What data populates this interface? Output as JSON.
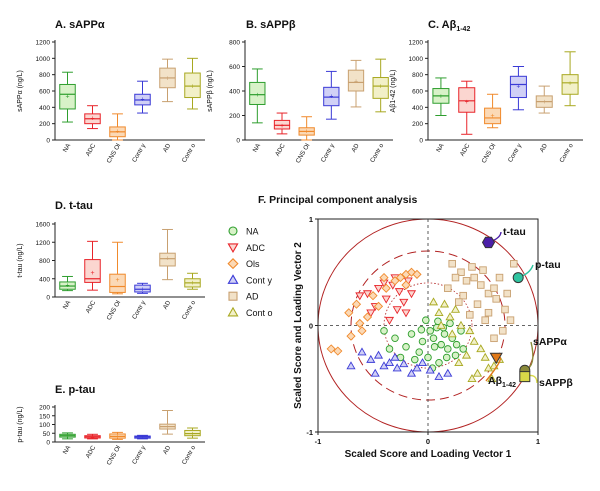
{
  "colors": {
    "NA": "#2e9e2e",
    "ADC": "#e8242a",
    "Ols": "#f08a2c",
    "Conty": "#3a3ad6",
    "AD": "#c8a070",
    "Conto": "#a8a820",
    "NA_fill": "#d8f2c8",
    "ADC_fill": "#fbd6d0",
    "Ols_fill": "#fbd9b6",
    "Conty_fill": "#d0d0f6",
    "AD_fill": "#f2e2c8",
    "Conto_fill": "#f2f0c8",
    "circle": "#b22222"
  },
  "chart_data": [
    {
      "id": "A",
      "type": "box",
      "title_prefix": "A. ",
      "title_main": "sAPP",
      "title_suffix": "α",
      "ylabel": "sAPPα (ng/L)",
      "ylim": [
        0,
        1200
      ],
      "yticks": [
        0,
        200,
        400,
        600,
        800,
        1000,
        1200
      ],
      "categories": [
        "NA",
        "ADC",
        "CNS Ol",
        "Contr y",
        "AD",
        "Contr o"
      ],
      "series": [
        {
          "group": "NA",
          "whisker_low": 220,
          "q1": 380,
          "median": 560,
          "q3": 680,
          "whisker_high": 830,
          "mean": 540
        },
        {
          "group": "ADC",
          "whisker_low": 140,
          "q1": 200,
          "median": 260,
          "q3": 320,
          "whisker_high": 420,
          "mean": 270
        },
        {
          "group": "Ols",
          "whisker_low": 0,
          "q1": 40,
          "median": 100,
          "q3": 160,
          "whisker_high": 320,
          "mean": 110
        },
        {
          "group": "Conty",
          "whisker_low": 330,
          "q1": 430,
          "median": 490,
          "q3": 560,
          "whisker_high": 720,
          "mean": 500
        },
        {
          "group": "AD",
          "whisker_low": 470,
          "q1": 640,
          "median": 760,
          "q3": 880,
          "whisker_high": 990,
          "mean": 760
        },
        {
          "group": "Conto",
          "whisker_low": 380,
          "q1": 520,
          "median": 660,
          "q3": 820,
          "whisker_high": 1000,
          "mean": 660
        }
      ]
    },
    {
      "id": "B",
      "type": "box",
      "title_prefix": "B. ",
      "title_main": "sAPP",
      "title_suffix": "β",
      "ylabel": "sAPPβ (ng/L)",
      "ylim": [
        0,
        800
      ],
      "yticks": [
        0,
        200,
        400,
        600,
        800
      ],
      "categories": [
        "NA",
        "ADC",
        "CNS Ol",
        "Contr y",
        "AD",
        "Contr o"
      ],
      "series": [
        {
          "group": "NA",
          "whisker_low": 140,
          "q1": 290,
          "median": 370,
          "q3": 470,
          "whisker_high": 580,
          "mean": 370
        },
        {
          "group": "ADC",
          "whisker_low": 50,
          "q1": 90,
          "median": 120,
          "q3": 160,
          "whisker_high": 220,
          "mean": 120
        },
        {
          "group": "Ols",
          "whisker_low": 0,
          "q1": 40,
          "median": 70,
          "q3": 100,
          "whisker_high": 190,
          "mean": 75
        },
        {
          "group": "Conty",
          "whisker_low": 170,
          "q1": 280,
          "median": 350,
          "q3": 430,
          "whisker_high": 560,
          "mean": 360
        },
        {
          "group": "AD",
          "whisker_low": 270,
          "q1": 400,
          "median": 470,
          "q3": 570,
          "whisker_high": 650,
          "mean": 480
        },
        {
          "group": "Conto",
          "whisker_low": 230,
          "q1": 340,
          "median": 440,
          "q3": 510,
          "whisker_high": 660,
          "mean": 440
        }
      ]
    },
    {
      "id": "C",
      "type": "box",
      "title_prefix": "C. ",
      "title_main": "Aβ",
      "title_suffix": "1-42",
      "ylabel": "Aβ1-42 (ng/L)",
      "ylim": [
        0,
        1200
      ],
      "yticks": [
        0,
        200,
        400,
        600,
        800,
        1000,
        1200
      ],
      "categories": [
        "NA",
        "ADC",
        "CNS Ol",
        "Contr y",
        "AD",
        "Contr o"
      ],
      "series": [
        {
          "group": "NA",
          "whisker_low": 300,
          "q1": 450,
          "median": 540,
          "q3": 630,
          "whisker_high": 760,
          "mean": 540
        },
        {
          "group": "ADC",
          "whisker_low": 70,
          "q1": 340,
          "median": 480,
          "q3": 640,
          "whisker_high": 720,
          "mean": 470
        },
        {
          "group": "Ols",
          "whisker_low": 150,
          "q1": 200,
          "median": 270,
          "q3": 390,
          "whisker_high": 560,
          "mean": 300
        },
        {
          "group": "Conty",
          "whisker_low": 370,
          "q1": 520,
          "median": 680,
          "q3": 780,
          "whisker_high": 900,
          "mean": 660
        },
        {
          "group": "AD",
          "whisker_low": 330,
          "q1": 400,
          "median": 470,
          "q3": 540,
          "whisker_high": 660,
          "mean": 470
        },
        {
          "group": "Conto",
          "whisker_low": 420,
          "q1": 560,
          "median": 700,
          "q3": 800,
          "whisker_high": 1080,
          "mean": 700
        }
      ]
    },
    {
      "id": "D",
      "type": "box",
      "title_prefix": "D. ",
      "title_main": "t-tau",
      "title_suffix": "",
      "ylabel": "t-tau (ng/L)",
      "ylim": [
        0,
        1600
      ],
      "yticks": [
        0,
        400,
        800,
        1200,
        1600
      ],
      "categories": [
        "NA",
        "ADC",
        "CNS Ol",
        "Contr y",
        "AD",
        "Contr o"
      ],
      "series": [
        {
          "group": "NA",
          "whisker_low": 140,
          "q1": 170,
          "median": 240,
          "q3": 330,
          "whisker_high": 450,
          "mean": 260
        },
        {
          "group": "ADC",
          "whisker_low": 150,
          "q1": 320,
          "median": 400,
          "q3": 820,
          "whisker_high": 1220,
          "mean": 540
        },
        {
          "group": "Ols",
          "whisker_low": 70,
          "q1": 100,
          "median": 230,
          "q3": 500,
          "whisker_high": 1200,
          "mean": 380
        },
        {
          "group": "Conty",
          "whisker_low": 80,
          "q1": 110,
          "median": 170,
          "q3": 260,
          "whisker_high": 300,
          "mean": 170
        },
        {
          "group": "AD",
          "whisker_low": 380,
          "q1": 680,
          "median": 840,
          "q3": 960,
          "whisker_high": 1480,
          "mean": 850
        },
        {
          "group": "Conto",
          "whisker_low": 170,
          "q1": 220,
          "median": 310,
          "q3": 400,
          "whisker_high": 520,
          "mean": 320
        }
      ]
    },
    {
      "id": "E",
      "type": "box",
      "title_prefix": "E. ",
      "title_main": "p-tau",
      "title_suffix": "",
      "ylabel": "p-tau (ng/L)",
      "ylim": [
        0,
        200
      ],
      "yticks": [
        0,
        50,
        100,
        150,
        200
      ],
      "categories": [
        "NA",
        "ADC",
        "CNS Ol",
        "Contr y",
        "AD",
        "Contr o"
      ],
      "series": [
        {
          "group": "NA",
          "whisker_low": 18,
          "q1": 28,
          "median": 36,
          "q3": 44,
          "whisker_high": 52,
          "mean": 36
        },
        {
          "group": "ADC",
          "whisker_low": 18,
          "q1": 23,
          "median": 30,
          "q3": 36,
          "whisker_high": 44,
          "mean": 30
        },
        {
          "group": "Ols",
          "whisker_low": 15,
          "q1": 22,
          "median": 32,
          "q3": 46,
          "whisker_high": 55,
          "mean": 34
        },
        {
          "group": "Conty",
          "whisker_low": 18,
          "q1": 22,
          "median": 28,
          "q3": 34,
          "whisker_high": 38,
          "mean": 28
        },
        {
          "group": "AD",
          "whisker_low": 45,
          "q1": 74,
          "median": 88,
          "q3": 102,
          "whisker_high": 180,
          "mean": 90
        },
        {
          "group": "Conto",
          "whisker_low": 22,
          "q1": 36,
          "median": 48,
          "q3": 66,
          "whisker_high": 80,
          "mean": 50
        }
      ]
    },
    {
      "id": "F",
      "type": "scatter",
      "title": "F. Principal component analysis",
      "xlabel": "Scaled Score and Loading Vector 1",
      "ylabel": "Scaled Score and Loading Vector 2",
      "xlim": [
        -1,
        1
      ],
      "ylim": [
        -1,
        1
      ],
      "xticks": [
        -1,
        0,
        1
      ],
      "yticks": [
        -1,
        0,
        1
      ],
      "legend": [
        {
          "group": "NA",
          "label": "NA",
          "marker": "circle"
        },
        {
          "group": "ADC",
          "label": "ADC",
          "marker": "triangle-down"
        },
        {
          "group": "Ols",
          "label": "Ols",
          "marker": "diamond"
        },
        {
          "group": "Conty",
          "label": "Cont y",
          "marker": "triangle-up"
        },
        {
          "group": "AD",
          "label": "AD",
          "marker": "square"
        },
        {
          "group": "Conto",
          "label": "Cont o",
          "marker": "triangle-up"
        }
      ],
      "series": [
        {
          "group": "NA",
          "points": [
            [
              0.02,
              -0.05
            ],
            [
              0.05,
              -0.12
            ],
            [
              0.08,
              -0.02
            ],
            [
              0.12,
              -0.18
            ],
            [
              -0.05,
              -0.15
            ],
            [
              0.15,
              -0.08
            ],
            [
              0.18,
              -0.22
            ],
            [
              -0.08,
              -0.25
            ],
            [
              0.22,
              -0.12
            ],
            [
              0.0,
              -0.3
            ],
            [
              0.1,
              -0.35
            ],
            [
              -0.15,
              -0.08
            ],
            [
              -0.2,
              -0.2
            ],
            [
              0.25,
              -0.28
            ],
            [
              -0.3,
              -0.12
            ],
            [
              0.06,
              -0.2
            ],
            [
              -0.02,
              0.05
            ],
            [
              0.3,
              -0.05
            ],
            [
              -0.12,
              -0.32
            ],
            [
              0.2,
              0.02
            ],
            [
              -0.4,
              -0.05
            ],
            [
              0.14,
              -0.02
            ],
            [
              -0.25,
              -0.3
            ],
            [
              0.04,
              -0.4
            ],
            [
              0.26,
              -0.18
            ],
            [
              0.32,
              -0.22
            ],
            [
              0.09,
              0.04
            ],
            [
              -0.06,
              -0.04
            ],
            [
              0.17,
              -0.3
            ],
            [
              -0.35,
              -0.22
            ]
          ]
        },
        {
          "group": "ADC",
          "points": [
            [
              -0.32,
              0.38
            ],
            [
              -0.26,
              0.32
            ],
            [
              -0.45,
              0.35
            ],
            [
              -0.18,
              0.42
            ],
            [
              -0.55,
              0.3
            ],
            [
              -0.38,
              0.25
            ],
            [
              -0.28,
              0.15
            ],
            [
              -0.48,
              0.18
            ],
            [
              -0.15,
              0.3
            ],
            [
              -0.62,
              0.28
            ],
            [
              -0.22,
              0.22
            ],
            [
              -0.4,
              0.4
            ],
            [
              -0.35,
              0.05
            ],
            [
              -0.52,
              0.12
            ],
            [
              -0.2,
              0.12
            ],
            [
              -0.3,
              0.45
            ]
          ]
        },
        {
          "group": "Ols",
          "points": [
            [
              -0.88,
              -0.22
            ],
            [
              -0.82,
              -0.24
            ],
            [
              -0.7,
              -0.1
            ],
            [
              -0.62,
              0.02
            ],
            [
              -0.55,
              0.08
            ],
            [
              -0.45,
              0.18
            ],
            [
              -0.6,
              -0.05
            ],
            [
              -0.72,
              0.12
            ],
            [
              -0.38,
              0.35
            ],
            [
              -0.3,
              0.42
            ],
            [
              -0.25,
              0.45
            ],
            [
              -0.2,
              0.48
            ],
            [
              -0.15,
              0.5
            ],
            [
              -0.1,
              0.48
            ],
            [
              -0.65,
              0.2
            ],
            [
              -0.5,
              0.28
            ],
            [
              -0.4,
              0.45
            ],
            [
              -0.2,
              0.38
            ]
          ]
        },
        {
          "group": "Conty",
          "points": [
            [
              -0.6,
              -0.25
            ],
            [
              -0.52,
              -0.32
            ],
            [
              -0.45,
              -0.28
            ],
            [
              -0.4,
              -0.38
            ],
            [
              -0.35,
              -0.35
            ],
            [
              -0.28,
              -0.4
            ],
            [
              -0.22,
              -0.36
            ],
            [
              -0.15,
              -0.45
            ],
            [
              -0.1,
              -0.4
            ],
            [
              -0.05,
              -0.35
            ],
            [
              0.02,
              -0.42
            ],
            [
              0.1,
              -0.48
            ],
            [
              -0.7,
              -0.38
            ],
            [
              -0.48,
              -0.45
            ],
            [
              -0.3,
              -0.3
            ],
            [
              0.18,
              -0.45
            ]
          ]
        },
        {
          "group": "AD",
          "points": [
            [
              0.22,
              0.58
            ],
            [
              0.3,
              0.5
            ],
            [
              0.35,
              0.42
            ],
            [
              0.42,
              0.45
            ],
            [
              0.48,
              0.38
            ],
            [
              0.55,
              0.3
            ],
            [
              0.62,
              0.25
            ],
            [
              0.7,
              0.15
            ],
            [
              0.75,
              0.05
            ],
            [
              0.68,
              -0.05
            ],
            [
              0.6,
              0.35
            ],
            [
              0.5,
              0.52
            ],
            [
              0.4,
              0.55
            ],
            [
              0.25,
              0.45
            ],
            [
              0.18,
              0.35
            ],
            [
              0.32,
              0.28
            ],
            [
              0.45,
              0.2
            ],
            [
              0.55,
              0.12
            ],
            [
              0.65,
              0.45
            ],
            [
              0.78,
              0.58
            ],
            [
              0.72,
              0.3
            ],
            [
              0.52,
              0.05
            ],
            [
              0.38,
              0.1
            ],
            [
              0.28,
              0.22
            ],
            [
              0.6,
              -0.12
            ]
          ]
        },
        {
          "group": "Conto",
          "points": [
            [
              0.05,
              0.22
            ],
            [
              0.1,
              0.12
            ],
            [
              0.15,
              0.2
            ],
            [
              0.2,
              0.08
            ],
            [
              0.25,
              0.15
            ],
            [
              0.3,
              0.0
            ],
            [
              0.38,
              -0.05
            ],
            [
              0.42,
              -0.15
            ],
            [
              0.48,
              -0.22
            ],
            [
              0.52,
              -0.3
            ],
            [
              0.55,
              -0.4
            ],
            [
              0.6,
              -0.38
            ],
            [
              0.45,
              -0.45
            ],
            [
              0.35,
              -0.28
            ],
            [
              0.28,
              -0.35
            ],
            [
              0.12,
              0.0
            ],
            [
              0.22,
              -0.08
            ],
            [
              0.58,
              -0.5
            ],
            [
              0.65,
              -0.32
            ],
            [
              0.4,
              -0.5
            ]
          ]
        }
      ],
      "loadings": [
        {
          "name": "t-tau",
          "label": "t-tau",
          "sub": "",
          "x": 0.55,
          "y": 0.78,
          "marker": "hexagon",
          "color": "#4b1fa8"
        },
        {
          "name": "p-tau",
          "label": "p-tau",
          "sub": "",
          "x": 0.82,
          "y": 0.45,
          "marker": "circle",
          "color": "#2fc4a0"
        },
        {
          "name": "sAPPa",
          "label": "sAPPα",
          "sub": "",
          "x": 0.88,
          "y": -0.42,
          "marker": "circle",
          "color": "#8a8a3a"
        },
        {
          "name": "sAPPb",
          "label": "sAPPβ",
          "sub": "",
          "x": 0.88,
          "y": -0.48,
          "marker": "square",
          "color": "#d8d848"
        },
        {
          "name": "Ab142",
          "label": "Aβ",
          "sub": "1-42",
          "x": 0.62,
          "y": -0.3,
          "marker": "triangle-down",
          "color": "#e07818"
        }
      ]
    }
  ]
}
